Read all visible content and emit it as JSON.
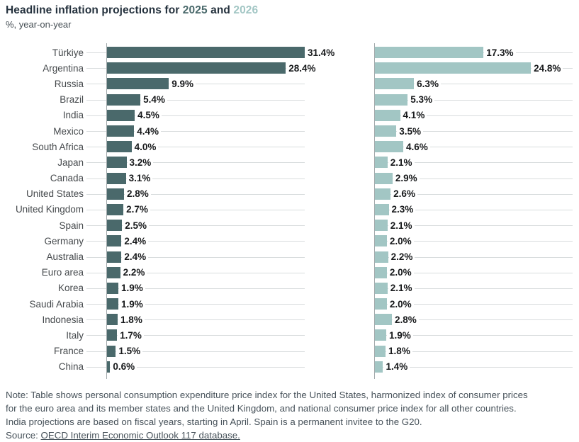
{
  "header": {
    "title_prefix": "Headline inflation projections for ",
    "title_year1": "2025",
    "title_and": " and ",
    "title_year2": "2026",
    "subtitle": "%, year-on-year"
  },
  "chart_data": {
    "type": "bar",
    "orientation": "horizontal",
    "title": "Headline inflation projections for 2025 and 2026",
    "subtitle": "%, year-on-year",
    "value_unit": "%, year-on-year",
    "value_suffix": "%",
    "xmax": 31.4,
    "grid": true,
    "categories": [
      "Türkiye",
      "Argentina",
      "Russia",
      "Brazil",
      "India",
      "Mexico",
      "South Africa",
      "Japan",
      "Canada",
      "United States",
      "United Kingdom",
      "Spain",
      "Germany",
      "Australia",
      "Euro area",
      "Korea",
      "Saudi Arabia",
      "Indonesia",
      "Italy",
      "France",
      "China"
    ],
    "series": [
      {
        "name": "2025",
        "color": "#4a696b",
        "values": [
          31.4,
          28.4,
          9.9,
          5.4,
          4.5,
          4.4,
          4.0,
          3.2,
          3.1,
          2.8,
          2.7,
          2.5,
          2.4,
          2.4,
          2.2,
          1.9,
          1.9,
          1.8,
          1.7,
          1.5,
          0.6
        ]
      },
      {
        "name": "2026",
        "color": "#a2c6c4",
        "values": [
          17.3,
          24.8,
          6.3,
          5.3,
          4.1,
          3.5,
          4.6,
          2.1,
          2.9,
          2.6,
          2.3,
          2.1,
          2.0,
          2.2,
          2.0,
          2.1,
          2.0,
          2.8,
          1.9,
          1.8,
          1.4
        ]
      }
    ]
  },
  "footer": {
    "note_lines": [
      "Note: Table shows personal consumption expenditure price index for the United States, harmonized index of consumer prices",
      "for the euro area and its member states and the United Kingdom, and national consumer price index for all other countries.",
      "India projections are based on fiscal years, starting in April. Spain is a permanent invitee to the G20."
    ],
    "source_prefix": "Source: ",
    "source_link": "OECD Interim Economic Outlook 117 database."
  },
  "colors": {
    "bar_2025": "#4a696b",
    "bar_2026": "#a2c6c4",
    "title_text": "#24313d",
    "country_label": "#45494c",
    "value_label": "#17191b",
    "gridline": "#d8dcdd",
    "axis": "#a0a8aa",
    "note_text": "#47525a",
    "background": "#ffffff"
  }
}
